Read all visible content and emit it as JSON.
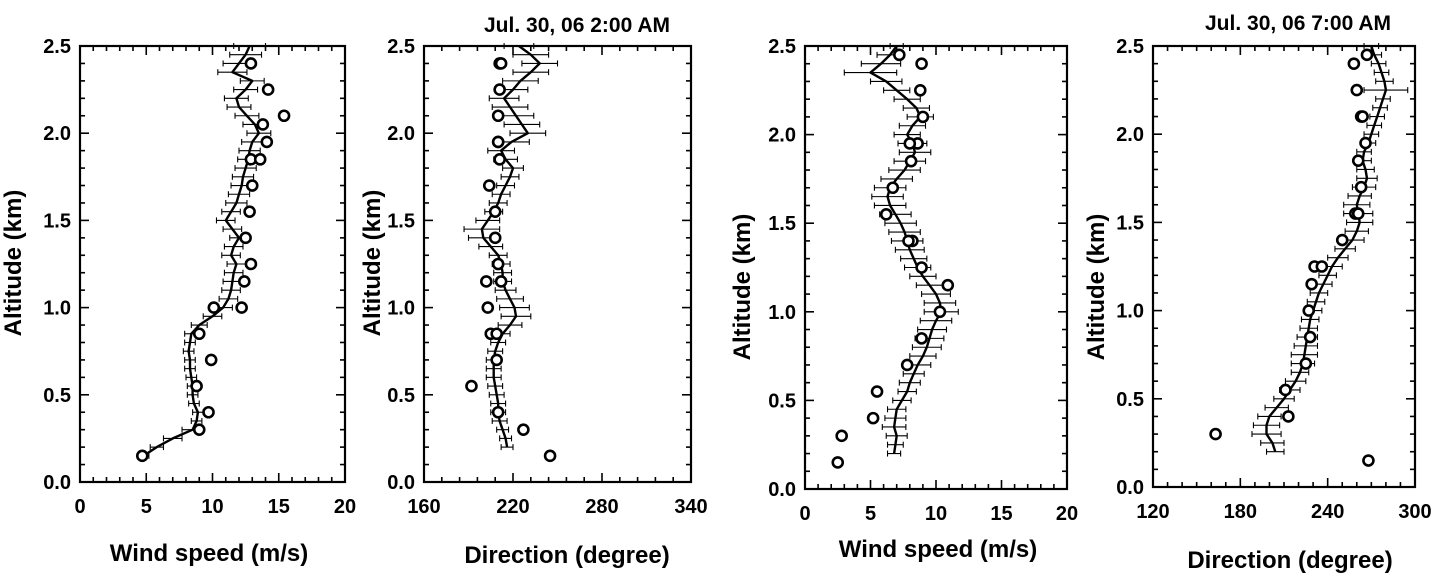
{
  "chart_data": [
    {
      "type": "line",
      "title": "",
      "xlabel": "Wind speed (m/s)",
      "ylabel": "Altitude (km)",
      "xlim": [
        0,
        20
      ],
      "ylim": [
        0,
        2.5
      ],
      "xticks": [
        "0",
        "5",
        "10",
        "15",
        "20"
      ],
      "yticks": [
        "0.0",
        "0.5",
        "1.0",
        "1.5",
        "2.0",
        "2.5"
      ],
      "profile": {
        "y": [
          0.15,
          0.2,
          0.25,
          0.3,
          0.35,
          0.4,
          0.45,
          0.5,
          0.55,
          0.6,
          0.65,
          0.7,
          0.75,
          0.8,
          0.85,
          0.9,
          0.95,
          1.0,
          1.05,
          1.1,
          1.15,
          1.2,
          1.25,
          1.3,
          1.35,
          1.4,
          1.45,
          1.5,
          1.55,
          1.6,
          1.65,
          1.7,
          1.75,
          1.8,
          1.85,
          1.9,
          1.95,
          2.0,
          2.05,
          2.1,
          2.15,
          2.2,
          2.25,
          2.3,
          2.35,
          2.4,
          2.45,
          2.5
        ],
        "x": [
          4.8,
          5.8,
          7.0,
          8.5,
          8.8,
          8.9,
          8.6,
          8.5,
          8.5,
          8.4,
          8.3,
          8.3,
          8.2,
          8.3,
          8.4,
          9.0,
          10.0,
          10.8,
          11.2,
          11.4,
          11.5,
          11.6,
          11.8,
          11.4,
          11.6,
          12.0,
          11.5,
          11.0,
          11.4,
          11.8,
          12.0,
          12.2,
          12.3,
          12.5,
          12.7,
          12.8,
          13.0,
          13.5,
          13.2,
          12.6,
          12.0,
          11.8,
          12.5,
          13.0,
          11.5,
          12.0,
          12.5,
          12.8
        ],
        "xerr": [
          0.4,
          0.5,
          0.7,
          0.8,
          0.4,
          0.4,
          0.4,
          0.4,
          0.4,
          0.4,
          0.4,
          0.4,
          0.4,
          0.4,
          0.5,
          0.6,
          0.7,
          0.7,
          0.7,
          0.7,
          0.7,
          0.7,
          0.7,
          0.7,
          0.7,
          0.7,
          0.7,
          0.7,
          0.7,
          0.8,
          0.8,
          0.8,
          0.8,
          0.8,
          0.8,
          0.8,
          0.8,
          0.9,
          0.9,
          0.9,
          0.9,
          0.9,
          0.9,
          0.9,
          1.1,
          1.2,
          1.2,
          1.2
        ]
      },
      "points": {
        "x": [
          4.7,
          9.0,
          9.7,
          8.8,
          9.9,
          9.0,
          10.1,
          12.2,
          12.4,
          12.9,
          12.5,
          12.8,
          13.0,
          12.9,
          13.6,
          14.1,
          13.8,
          15.4,
          14.2,
          12.9
        ],
        "y": [
          0.15,
          0.3,
          0.4,
          0.55,
          0.7,
          0.85,
          1.0,
          1.0,
          1.15,
          1.25,
          1.4,
          1.55,
          1.7,
          1.85,
          1.85,
          1.95,
          2.05,
          2.1,
          2.25,
          2.4
        ]
      }
    },
    {
      "type": "line",
      "title": "Jul. 30, 06  2:00 AM",
      "xlabel": "Direction (degree)",
      "ylabel": "Altitude (km)",
      "xlim": [
        160,
        340
      ],
      "ylim": [
        0,
        2.5
      ],
      "xticks": [
        "160",
        "220",
        "280",
        "340"
      ],
      "yticks": [
        "0.0",
        "0.5",
        "1.0",
        "1.5",
        "2.0",
        "2.5"
      ],
      "profile": {
        "y": [
          0.2,
          0.25,
          0.3,
          0.35,
          0.4,
          0.45,
          0.5,
          0.55,
          0.6,
          0.65,
          0.7,
          0.75,
          0.8,
          0.85,
          0.9,
          0.95,
          1.0,
          1.05,
          1.1,
          1.15,
          1.2,
          1.25,
          1.3,
          1.35,
          1.4,
          1.45,
          1.5,
          1.55,
          1.6,
          1.65,
          1.7,
          1.75,
          1.8,
          1.85,
          1.9,
          1.95,
          2.0,
          2.05,
          2.1,
          2.15,
          2.2,
          2.25,
          2.3,
          2.35,
          2.4,
          2.45,
          2.5
        ],
        "x": [
          216,
          215,
          213,
          211,
          210,
          210,
          209,
          208,
          207,
          207,
          207,
          208,
          210,
          213,
          218,
          222,
          221,
          218,
          215,
          213,
          213,
          212,
          210,
          205,
          200,
          199,
          203,
          207,
          210,
          212,
          215,
          218,
          220,
          215,
          212,
          219,
          230,
          226,
          222,
          218,
          214,
          220,
          225,
          232,
          238,
          232,
          224
        ],
        "xerr": [
          4,
          4,
          4,
          5,
          5,
          5,
          5,
          5,
          5,
          5,
          5,
          5,
          5,
          5,
          8,
          10,
          10,
          9,
          7,
          6,
          6,
          6,
          6,
          8,
          10,
          12,
          8,
          6,
          6,
          6,
          6,
          6,
          7,
          8,
          9,
          12,
          12,
          12,
          12,
          12,
          10,
          10,
          12,
          12,
          12,
          12,
          10
        ]
      },
      "points": {
        "x": [
          245,
          227,
          210,
          192,
          209,
          205,
          209,
          203,
          202,
          212,
          210,
          208,
          208,
          204,
          211,
          210,
          210,
          210,
          211,
          211,
          212
        ],
        "y": [
          0.15,
          0.3,
          0.4,
          0.55,
          0.7,
          0.85,
          0.85,
          1.0,
          1.15,
          1.15,
          1.25,
          1.4,
          1.55,
          1.7,
          1.85,
          1.95,
          1.95,
          2.1,
          2.25,
          2.4,
          2.4
        ]
      }
    },
    {
      "type": "line",
      "title": "",
      "xlabel": "Wind speed (m/s)",
      "ylabel": "Altitude (km)",
      "xlim": [
        0,
        20
      ],
      "ylim": [
        0,
        2.5
      ],
      "xticks": [
        "0",
        "5",
        "10",
        "15",
        "20"
      ],
      "yticks": [
        "0.0",
        "0.5",
        "1.0",
        "1.5",
        "2.0",
        "2.5"
      ],
      "profile": {
        "y": [
          0.2,
          0.25,
          0.3,
          0.35,
          0.4,
          0.45,
          0.5,
          0.55,
          0.6,
          0.65,
          0.7,
          0.75,
          0.8,
          0.85,
          0.9,
          0.95,
          1.0,
          1.05,
          1.1,
          1.15,
          1.2,
          1.25,
          1.3,
          1.35,
          1.4,
          1.45,
          1.5,
          1.55,
          1.6,
          1.65,
          1.7,
          1.75,
          1.8,
          1.85,
          1.9,
          1.95,
          2.0,
          2.05,
          2.1,
          2.15,
          2.2,
          2.25,
          2.3,
          2.35,
          2.4,
          2.45,
          2.5
        ],
        "x": [
          6.8,
          6.9,
          7.0,
          6.8,
          6.9,
          7.0,
          7.4,
          7.8,
          8.0,
          8.3,
          8.6,
          9.0,
          9.3,
          9.5,
          9.7,
          10.0,
          10.4,
          10.3,
          10.0,
          9.5,
          9.0,
          8.6,
          8.3,
          8.0,
          7.8,
          7.6,
          7.3,
          6.9,
          6.5,
          6.3,
          6.5,
          7.0,
          7.6,
          8.0,
          8.4,
          8.2,
          7.8,
          8.2,
          8.8,
          8.5,
          7.8,
          7.0,
          6.2,
          5.0,
          5.8,
          6.5,
          7.0
        ],
        "xerr": [
          0.5,
          0.6,
          0.8,
          0.9,
          0.8,
          0.7,
          0.7,
          0.7,
          0.8,
          0.8,
          1.0,
          1.0,
          1.1,
          1.1,
          1.1,
          1.2,
          1.3,
          1.2,
          1.1,
          1.0,
          1.0,
          1.0,
          1.0,
          1.1,
          1.2,
          1.2,
          1.2,
          1.2,
          1.2,
          1.2,
          1.2,
          1.2,
          1.2,
          1.2,
          1.2,
          1.1,
          1.0,
          1.0,
          1.0,
          1.0,
          1.0,
          1.0,
          1.2,
          2.0,
          1.5,
          1.0,
          0.5
        ]
      },
      "points": {
        "x": [
          2.5,
          2.8,
          5.2,
          5.5,
          7.8,
          8.9,
          10.3,
          10.9,
          8.9,
          8.2,
          7.9,
          6.2,
          6.7,
          8.1,
          8.6,
          8.0,
          9.0,
          8.8,
          8.9,
          7.2
        ],
        "y": [
          0.15,
          0.3,
          0.4,
          0.55,
          0.7,
          0.85,
          1.0,
          1.15,
          1.25,
          1.4,
          1.4,
          1.55,
          1.7,
          1.85,
          1.95,
          1.95,
          2.1,
          2.25,
          2.4,
          2.45
        ]
      }
    },
    {
      "type": "line",
      "title": "Jul. 30, 06  7:00 AM",
      "xlabel": "Direction (degree)",
      "ylabel": "Altitude (km)",
      "xlim": [
        120,
        300
      ],
      "ylim": [
        0,
        2.5
      ],
      "xticks": [
        "120",
        "180",
        "240",
        "300"
      ],
      "yticks": [
        "0.0",
        "0.5",
        "1.0",
        "1.5",
        "2.0",
        "2.5"
      ],
      "profile": {
        "y": [
          0.2,
          0.25,
          0.3,
          0.35,
          0.4,
          0.45,
          0.5,
          0.55,
          0.6,
          0.65,
          0.7,
          0.75,
          0.8,
          0.85,
          0.9,
          0.95,
          1.0,
          1.05,
          1.1,
          1.15,
          1.2,
          1.25,
          1.3,
          1.35,
          1.4,
          1.45,
          1.5,
          1.55,
          1.6,
          1.65,
          1.7,
          1.75,
          1.8,
          1.85,
          1.9,
          1.95,
          2.0,
          2.05,
          2.1,
          2.15,
          2.2,
          2.25,
          2.3,
          2.35,
          2.4,
          2.45,
          2.5
        ],
        "x": [
          204,
          202,
          198,
          198,
          200,
          205,
          210,
          214,
          218,
          221,
          223,
          224,
          225,
          226,
          227,
          228,
          230,
          232,
          234,
          237,
          240,
          243,
          247,
          252,
          257,
          260,
          262,
          261,
          260,
          262,
          265,
          267,
          266,
          264,
          265,
          268,
          270,
          272,
          274,
          276,
          278,
          280,
          279,
          277,
          275,
          272,
          270
        ],
        "xerr": [
          6,
          8,
          10,
          9,
          8,
          8,
          7,
          7,
          7,
          6,
          8,
          9,
          8,
          7,
          6,
          6,
          6,
          6,
          6,
          6,
          6,
          7,
          7,
          7,
          8,
          8,
          9,
          10,
          9,
          8,
          8,
          7,
          6,
          6,
          5,
          5,
          5,
          5,
          5,
          5,
          5,
          15,
          6,
          5,
          5,
          5,
          5
        ]
      },
      "points": {
        "x": [
          268,
          163,
          213,
          211,
          225,
          228,
          227,
          229,
          231,
          236,
          250,
          259,
          261,
          263,
          261,
          266,
          263,
          264,
          260,
          258,
          267
        ],
        "y": [
          0.15,
          0.3,
          0.4,
          0.55,
          0.7,
          0.85,
          1.0,
          1.15,
          1.25,
          1.25,
          1.4,
          1.55,
          1.55,
          1.7,
          1.85,
          1.95,
          2.1,
          2.1,
          2.25,
          2.4,
          2.45
        ]
      }
    }
  ]
}
